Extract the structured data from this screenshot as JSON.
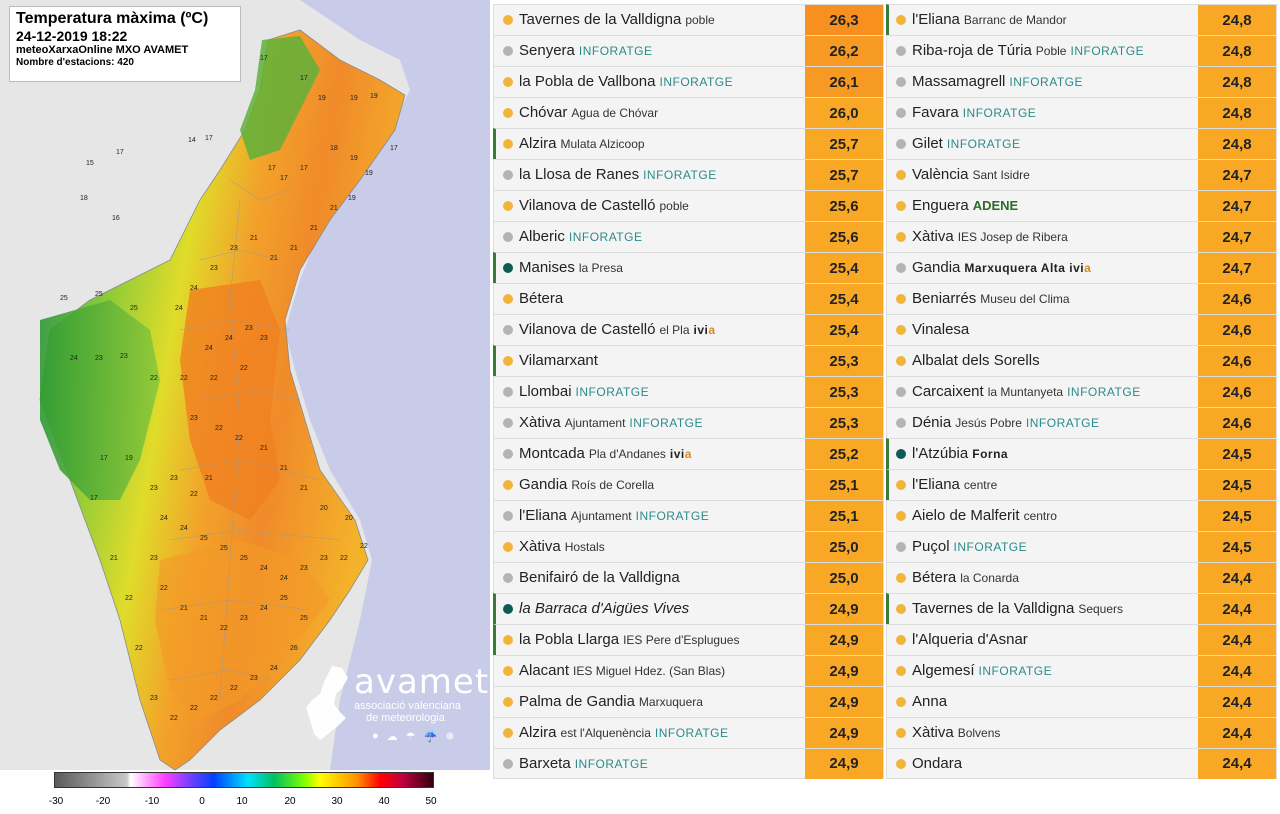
{
  "map": {
    "title": "Temperatura màxima (ºC)",
    "date": "24-12-2019 18:22",
    "source": "meteoXarxaOnline MXO AVAMET",
    "station_count": "Nombre d'estacions: 420",
    "labels": [
      "15",
      "17",
      "14",
      "17",
      "16",
      "18",
      "17",
      "17",
      "19",
      "19",
      "19",
      "17",
      "17",
      "17",
      "17",
      "18",
      "19",
      "19",
      "19",
      "21",
      "21",
      "21",
      "21",
      "21",
      "23",
      "23",
      "24",
      "24",
      "25",
      "25",
      "25",
      "24",
      "23",
      "23",
      "22",
      "22",
      "22",
      "22",
      "23",
      "23",
      "24",
      "24",
      "23",
      "22",
      "22",
      "21",
      "21",
      "21",
      "20",
      "20",
      "22",
      "22",
      "23",
      "23",
      "24",
      "24",
      "25",
      "25",
      "25",
      "24",
      "24",
      "23",
      "22",
      "21",
      "21",
      "22",
      "23",
      "24",
      "25",
      "25",
      "26",
      "24",
      "23",
      "22",
      "22",
      "22",
      "22",
      "23",
      "22",
      "22",
      "21",
      "17",
      "17",
      "19",
      "23",
      "23",
      "22",
      "21"
    ],
    "logo": {
      "name": "avamet",
      "line1": "associació valenciana",
      "line2": "de meteorologia"
    },
    "legend_ticks": [
      "-30",
      "-20",
      "-10",
      "0",
      "10",
      "20",
      "30",
      "40",
      "50"
    ],
    "colors": {
      "sea": "#c8cce8",
      "land_out": "#e6e6e6"
    }
  },
  "stations_left": [
    {
      "name": "Tavernes de la Valldigna",
      "sub": "poble",
      "tag": "",
      "tag_type": "",
      "value": "26,3",
      "dot": "#f2b53c",
      "cell": "#f7901e",
      "marked": false
    },
    {
      "name": "Senyera",
      "sub": "",
      "tag": "INFORATGE",
      "tag_type": "inforatge",
      "value": "26,2",
      "dot": "#b4b4b4",
      "cell": "#f79a24",
      "marked": false
    },
    {
      "name": "la Pobla de Vallbona",
      "sub": "",
      "tag": "INFORATGE",
      "tag_type": "inforatge",
      "value": "26,1",
      "dot": "#f2b53c",
      "cell": "#f79a24",
      "marked": false
    },
    {
      "name": "Chóvar",
      "sub": "Agua de Chóvar",
      "tag": "",
      "tag_type": "",
      "value": "26,0",
      "dot": "#f2b53c",
      "cell": "#f9a826",
      "marked": false
    },
    {
      "name": "Alzira",
      "sub": "Mulata Alzicoop",
      "tag": "",
      "tag_type": "",
      "value": "25,7",
      "dot": "#f2b53c",
      "cell": "#f9a826",
      "marked": true
    },
    {
      "name": "la Llosa de Ranes",
      "sub": "",
      "tag": "INFORATGE",
      "tag_type": "inforatge",
      "value": "25,7",
      "dot": "#b4b4b4",
      "cell": "#f9a826",
      "marked": false
    },
    {
      "name": "Vilanova de Castelló",
      "sub": "poble",
      "tag": "",
      "tag_type": "",
      "value": "25,6",
      "dot": "#f2b53c",
      "cell": "#f9a826",
      "marked": false
    },
    {
      "name": "Alberic",
      "sub": "",
      "tag": "INFORATGE",
      "tag_type": "inforatge",
      "value": "25,6",
      "dot": "#b4b4b4",
      "cell": "#f9a826",
      "marked": false
    },
    {
      "name": "Manises",
      "sub": "la Presa",
      "tag": "",
      "tag_type": "",
      "value": "25,4",
      "dot": "#0e5a55",
      "cell": "#f9a826",
      "marked": true
    },
    {
      "name": "Bétera",
      "sub": "",
      "tag": "",
      "tag_type": "",
      "value": "25,4",
      "dot": "#f2b53c",
      "cell": "#f9a826",
      "marked": false
    },
    {
      "name": "Vilanova de Castelló",
      "sub": "el Pla",
      "tag": "ivia",
      "tag_type": "ivia",
      "value": "25,4",
      "dot": "#b4b4b4",
      "cell": "#f9a826",
      "marked": false
    },
    {
      "name": "Vilamarxant",
      "sub": "",
      "tag": "",
      "tag_type": "",
      "value": "25,3",
      "dot": "#f2b53c",
      "cell": "#f9a826",
      "marked": true
    },
    {
      "name": "Llombai",
      "sub": "",
      "tag": "INFORATGE",
      "tag_type": "inforatge",
      "value": "25,3",
      "dot": "#b4b4b4",
      "cell": "#f9a826",
      "marked": false
    },
    {
      "name": "Xàtiva",
      "sub": "Ajuntament",
      "tag": "INFORATGE",
      "tag_type": "inforatge",
      "value": "25,3",
      "dot": "#b4b4b4",
      "cell": "#f9a826",
      "marked": false
    },
    {
      "name": "Montcada",
      "sub": "Pla d'Andanes",
      "tag": "ivia",
      "tag_type": "ivia",
      "value": "25,2",
      "dot": "#b4b4b4",
      "cell": "#f9a826",
      "marked": false
    },
    {
      "name": "Gandia",
      "sub": "Roís de Corella",
      "tag": "",
      "tag_type": "",
      "value": "25,1",
      "dot": "#f2b53c",
      "cell": "#f9a826",
      "marked": false
    },
    {
      "name": "l'Eliana",
      "sub": "Ajuntament",
      "tag": "INFORATGE",
      "tag_type": "inforatge",
      "value": "25,1",
      "dot": "#b4b4b4",
      "cell": "#f9a826",
      "marked": false
    },
    {
      "name": "Xàtiva",
      "sub": "Hostals",
      "tag": "",
      "tag_type": "",
      "value": "25,0",
      "dot": "#f2b53c",
      "cell": "#f9a826",
      "marked": false
    },
    {
      "name": "Benifairó de la Valldigna",
      "sub": "",
      "tag": "",
      "tag_type": "",
      "value": "25,0",
      "dot": "#b4b4b4",
      "cell": "#f9a826",
      "marked": false
    },
    {
      "name": "la Barraca d'Aigües Vives",
      "sub": "",
      "tag": "",
      "tag_type": "",
      "value": "24,9",
      "dot": "#0e5a55",
      "cell": "#f9a826",
      "marked": true,
      "italic": true
    },
    {
      "name": "la Pobla Llarga",
      "sub": "IES Pere d'Esplugues",
      "tag": "",
      "tag_type": "",
      "value": "24,9",
      "dot": "#f2b53c",
      "cell": "#f9a826",
      "marked": true
    },
    {
      "name": "Alacant",
      "sub": "IES Miguel Hdez. (San Blas)",
      "tag": "",
      "tag_type": "",
      "value": "24,9",
      "dot": "#f2b53c",
      "cell": "#f9a826",
      "marked": false
    },
    {
      "name": "Palma de Gandia",
      "sub": "Marxuquera",
      "tag": "",
      "tag_type": "",
      "value": "24,9",
      "dot": "#f2b53c",
      "cell": "#f9a826",
      "marked": false
    },
    {
      "name": "Alzira",
      "sub": "est l'Alquenència",
      "tag": "INFORATGE",
      "tag_type": "inforatge",
      "value": "24,9",
      "dot": "#f2b53c",
      "cell": "#f9a826",
      "marked": false
    },
    {
      "name": "Barxeta",
      "sub": "",
      "tag": "INFORATGE",
      "tag_type": "inforatge",
      "value": "24,9",
      "dot": "#b4b4b4",
      "cell": "#f9a826",
      "marked": false
    }
  ],
  "stations_right": [
    {
      "name": "l'Eliana",
      "sub": "Barranc de Mandor",
      "tag": "",
      "tag_type": "",
      "value": "24,8",
      "dot": "#f2b53c",
      "cell": "#f9a826",
      "marked": true
    },
    {
      "name": "Riba-roja de Túria",
      "sub": "Poble",
      "tag": "INFORATGE",
      "tag_type": "inforatge",
      "value": "24,8",
      "dot": "#b4b4b4",
      "cell": "#f9a826",
      "marked": false
    },
    {
      "name": "Massamagrell",
      "sub": "",
      "tag": "INFORATGE",
      "tag_type": "inforatge",
      "value": "24,8",
      "dot": "#b4b4b4",
      "cell": "#f9a826",
      "marked": false
    },
    {
      "name": "Favara",
      "sub": "",
      "tag": "INFORATGE",
      "tag_type": "inforatge",
      "value": "24,8",
      "dot": "#b4b4b4",
      "cell": "#f9a826",
      "marked": false
    },
    {
      "name": "Gilet",
      "sub": "",
      "tag": "INFORATGE",
      "tag_type": "inforatge",
      "value": "24,8",
      "dot": "#b4b4b4",
      "cell": "#f9a826",
      "marked": false
    },
    {
      "name": "València",
      "sub": "Sant Isidre",
      "tag": "",
      "tag_type": "",
      "value": "24,7",
      "dot": "#f2b53c",
      "cell": "#f9a826",
      "marked": false
    },
    {
      "name": "Enguera",
      "sub": "",
      "tag": "ADENE",
      "tag_type": "adene",
      "value": "24,7",
      "dot": "#f2b53c",
      "cell": "#f9a826",
      "marked": false
    },
    {
      "name": "Xàtiva",
      "sub": "IES Josep de Ribera",
      "tag": "",
      "tag_type": "",
      "value": "24,7",
      "dot": "#f2b53c",
      "cell": "#f9a826",
      "marked": false
    },
    {
      "name": "Gandia",
      "sub": "",
      "tag": "Marxuquera Alta ivia",
      "tag_type": "ivia-alta",
      "value": "24,7",
      "dot": "#b4b4b4",
      "cell": "#f9a826",
      "marked": false
    },
    {
      "name": "Beniarrés",
      "sub": "Museu del Clima",
      "tag": "",
      "tag_type": "",
      "value": "24,6",
      "dot": "#f2b53c",
      "cell": "#f9a826",
      "marked": false
    },
    {
      "name": "Vinalesa",
      "sub": "",
      "tag": "",
      "tag_type": "",
      "value": "24,6",
      "dot": "#f2b53c",
      "cell": "#f9a826",
      "marked": false
    },
    {
      "name": "Albalat dels Sorells",
      "sub": "",
      "tag": "",
      "tag_type": "",
      "value": "24,6",
      "dot": "#f2b53c",
      "cell": "#f9a826",
      "marked": false
    },
    {
      "name": "Carcaixent",
      "sub": "la Muntanyeta",
      "tag": "INFORATGE",
      "tag_type": "inforatge",
      "value": "24,6",
      "dot": "#b4b4b4",
      "cell": "#f9a826",
      "marked": false
    },
    {
      "name": "Dénia",
      "sub": "Jesús Pobre",
      "tag": "INFORATGE",
      "tag_type": "inforatge",
      "value": "24,6",
      "dot": "#b4b4b4",
      "cell": "#f9a826",
      "marked": false
    },
    {
      "name": "l'Atzúbia",
      "sub": "",
      "tag": "Forna",
      "tag_type": "forna",
      "value": "24,5",
      "dot": "#0e5a55",
      "cell": "#f9a826",
      "marked": true
    },
    {
      "name": "l'Eliana",
      "sub": "centre",
      "tag": "",
      "tag_type": "",
      "value": "24,5",
      "dot": "#f2b53c",
      "cell": "#f9a826",
      "marked": true
    },
    {
      "name": "Aielo de Malferit",
      "sub": "centro",
      "tag": "",
      "tag_type": "",
      "value": "24,5",
      "dot": "#f2b53c",
      "cell": "#f9a826",
      "marked": false
    },
    {
      "name": "Puçol",
      "sub": "",
      "tag": "INFORATGE",
      "tag_type": "inforatge",
      "value": "24,5",
      "dot": "#b4b4b4",
      "cell": "#f9a826",
      "marked": false
    },
    {
      "name": "Bétera",
      "sub": "la Conarda",
      "tag": "",
      "tag_type": "",
      "value": "24,4",
      "dot": "#f2b53c",
      "cell": "#f9a826",
      "marked": false
    },
    {
      "name": "Tavernes de la Valldigna",
      "sub": "Sequers",
      "tag": "",
      "tag_type": "",
      "value": "24,4",
      "dot": "#f2b53c",
      "cell": "#f9a826",
      "marked": true
    },
    {
      "name": "l'Alqueria d'Asnar",
      "sub": "",
      "tag": "",
      "tag_type": "",
      "value": "24,4",
      "dot": "#f2b53c",
      "cell": "#f9a826",
      "marked": false
    },
    {
      "name": "Algemesí",
      "sub": "",
      "tag": "INFORATGE",
      "tag_type": "inforatge",
      "value": "24,4",
      "dot": "#f2b53c",
      "cell": "#f9a826",
      "marked": false
    },
    {
      "name": "Anna",
      "sub": "",
      "tag": "",
      "tag_type": "",
      "value": "24,4",
      "dot": "#f2b53c",
      "cell": "#f9a826",
      "marked": false
    },
    {
      "name": "Xàtiva",
      "sub": "Bolvens",
      "tag": "",
      "tag_type": "",
      "value": "24,4",
      "dot": "#f2b53c",
      "cell": "#f9a826",
      "marked": false
    },
    {
      "name": "Ondara",
      "sub": "",
      "tag": "",
      "tag_type": "",
      "value": "24,4",
      "dot": "#f2b53c",
      "cell": "#f9a826",
      "marked": false
    }
  ]
}
